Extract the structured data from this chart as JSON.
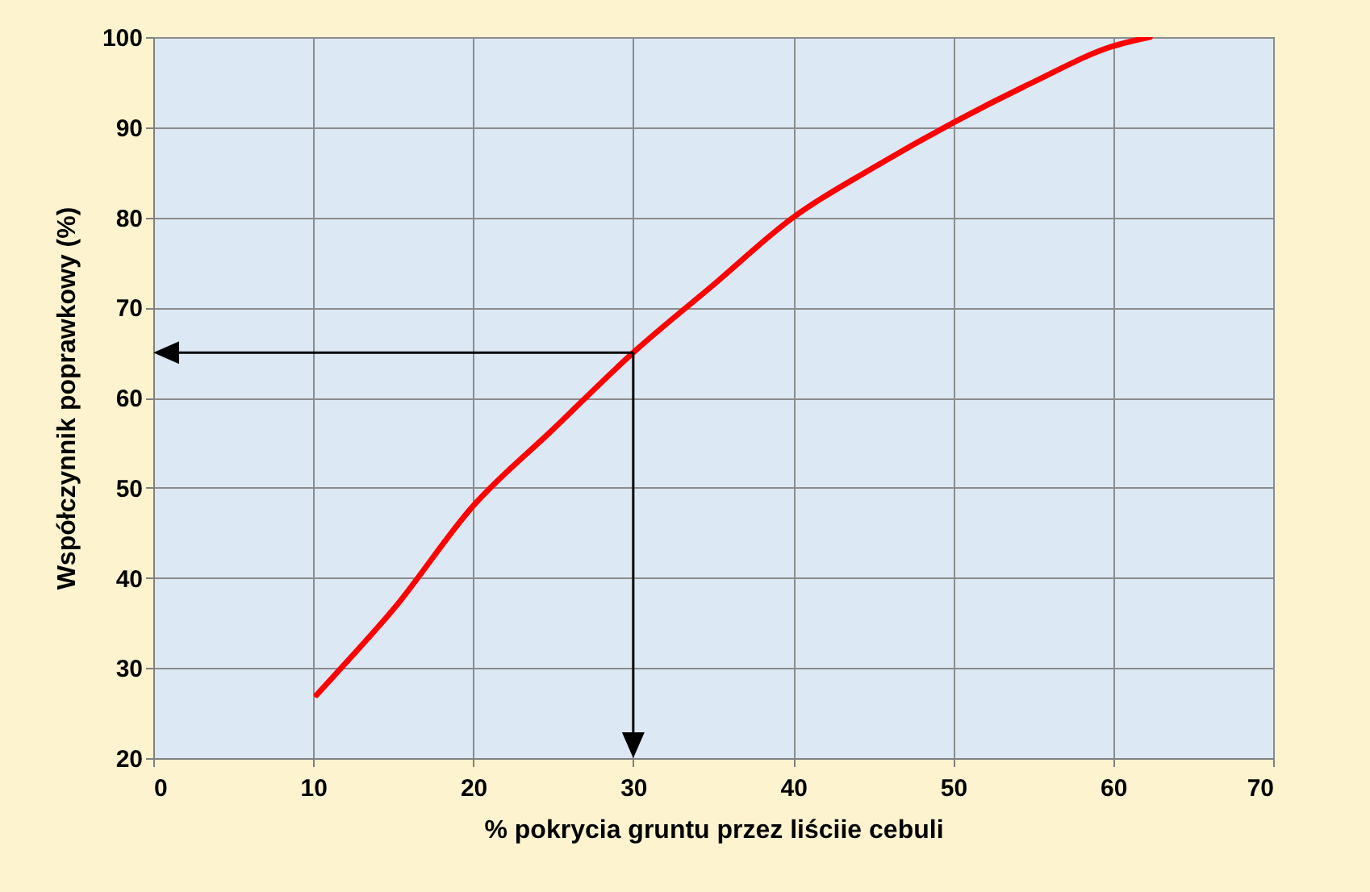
{
  "chart_data": {
    "type": "line",
    "xlabel": "%  pokrycia gruntu przez liściie cebuli",
    "ylabel": "Współczynnik  poprawkowy (%)",
    "series": [
      {
        "color": "#ff0000",
        "x": [
          10.2,
          12,
          15,
          20,
          25,
          30,
          35,
          40,
          45,
          50,
          55,
          60,
          62.3
        ],
        "values": [
          27,
          30.5,
          36.5,
          48,
          56.5,
          65,
          72.5,
          80,
          85.5,
          90.5,
          95,
          99,
          100
        ]
      }
    ],
    "ref_lines": [
      {
        "axis": "x",
        "value": 30,
        "color": "#000000"
      },
      {
        "axis": "y",
        "value": 65,
        "color": "#000000"
      }
    ],
    "xlim": [
      0,
      70
    ],
    "xticks": [
      0,
      10,
      20,
      30,
      40,
      50,
      60,
      70
    ],
    "ylim": [
      20,
      100
    ],
    "yticks": [
      20,
      30,
      40,
      50,
      60,
      70,
      80,
      90,
      100
    ],
    "grid": true,
    "marker": "none",
    "line_style": "solid"
  }
}
